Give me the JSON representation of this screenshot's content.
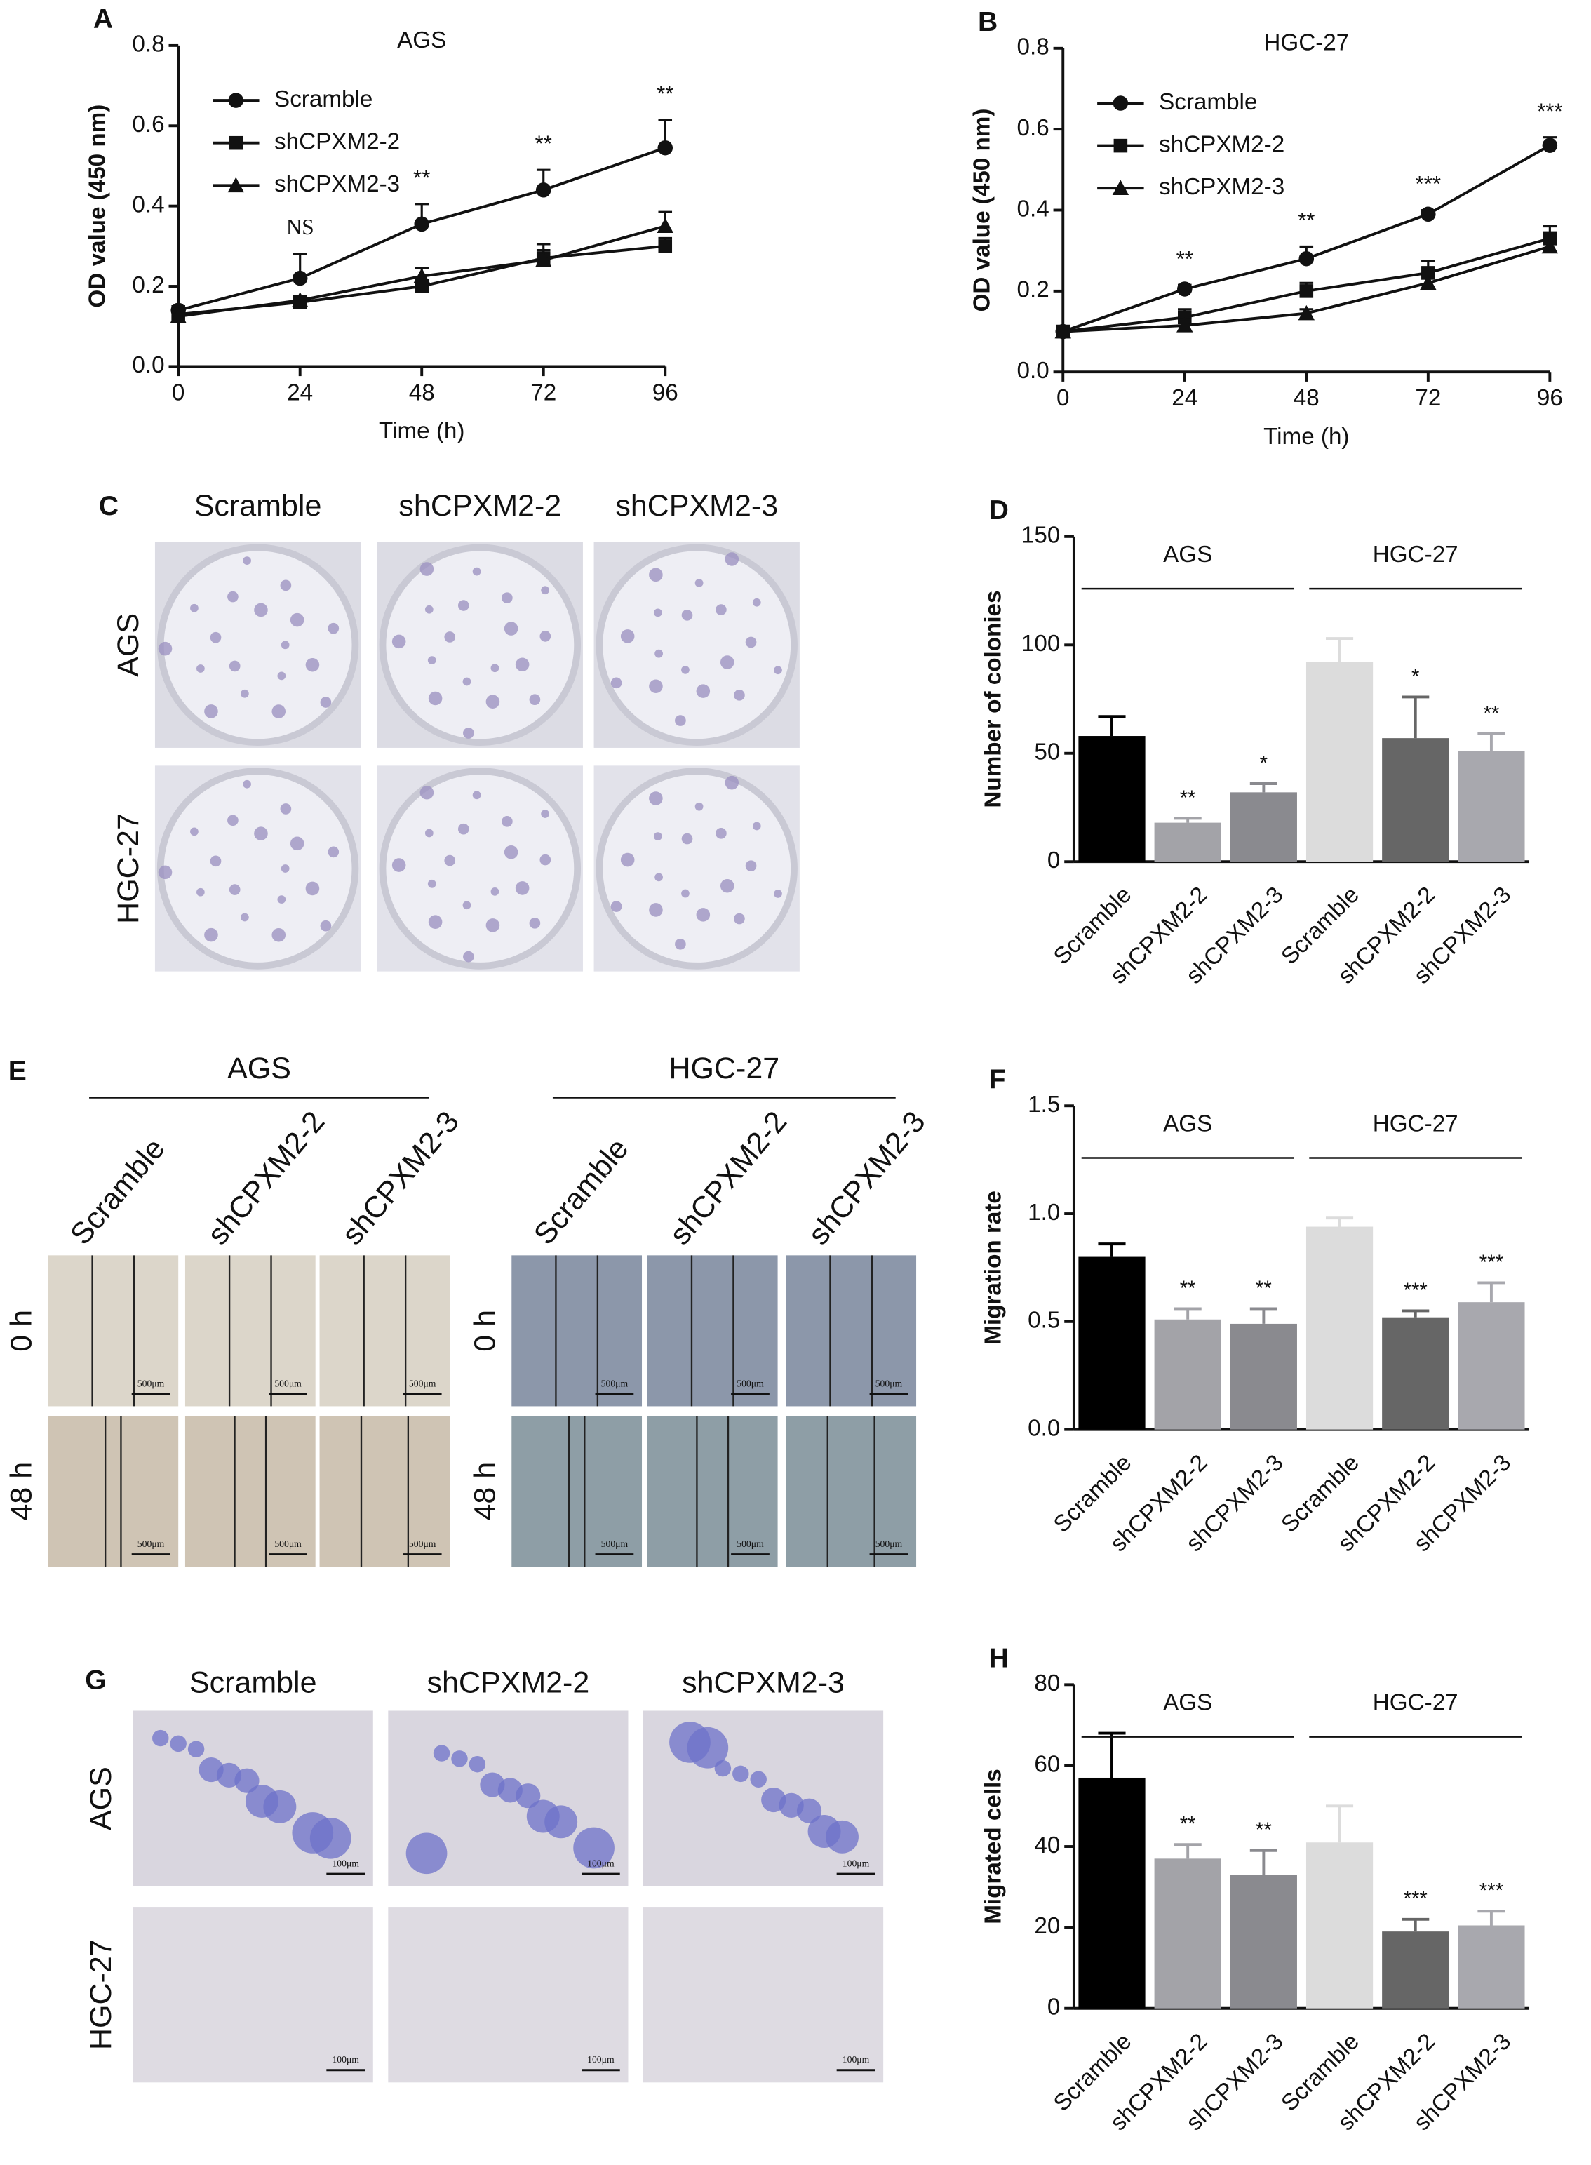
{
  "chart_data": [
    {
      "type": "line",
      "panel": "A",
      "title": "AGS",
      "x_label": "Time (h)",
      "y_label": "OD value (450 nm)",
      "x": [
        0,
        24,
        48,
        72,
        96
      ],
      "xlim": [
        0,
        96
      ],
      "xticks": [
        0,
        24,
        48,
        72,
        96
      ],
      "ylim": [
        0,
        0.8
      ],
      "yticks": [
        {
          "value": 0,
          "label": "0.0"
        },
        {
          "value": 0.2,
          "label": "0.2"
        },
        {
          "value": 0.4,
          "label": "0.4"
        },
        {
          "value": 0.6,
          "label": "0.6"
        },
        {
          "value": 0.8,
          "label": "0.8"
        }
      ],
      "series": [
        {
          "name": "Scramble",
          "color": "#111111",
          "marker": "circle",
          "values": [
            0.14,
            0.22,
            0.355,
            0.44,
            0.545
          ],
          "errors": [
            0.01,
            0.06,
            0.05,
            0.05,
            0.07
          ]
        },
        {
          "name": "shCPXM2-2",
          "color": "#111111",
          "marker": "square",
          "values": [
            0.13,
            0.16,
            0.2,
            0.27,
            0.3
          ],
          "errors": [
            0.01,
            0.01,
            0.015,
            0.02,
            0.02
          ]
        },
        {
          "name": "shCPXM2-3",
          "color": "#111111",
          "marker": "triangle",
          "values": [
            0.125,
            0.165,
            0.225,
            0.265,
            0.35
          ],
          "errors": [
            0.01,
            0.01,
            0.02,
            0.04,
            0.035
          ]
        }
      ],
      "annotations": [
        {
          "x": 24,
          "text": "NS"
        },
        {
          "x": 48,
          "text": "**"
        },
        {
          "x": 72,
          "text": "**"
        },
        {
          "x": 96,
          "text": "**"
        }
      ]
    },
    {
      "type": "line",
      "panel": "B",
      "title": "HGC-27",
      "x_label": "Time (h)",
      "y_label": "OD value (450 nm)",
      "x": [
        0,
        24,
        48,
        72,
        96
      ],
      "xlim": [
        0,
        96
      ],
      "xticks": [
        0,
        24,
        48,
        72,
        96
      ],
      "ylim": [
        0,
        0.8
      ],
      "yticks": [
        {
          "value": 0,
          "label": "0.0"
        },
        {
          "value": 0.2,
          "label": "0.2"
        },
        {
          "value": 0.4,
          "label": "0.4"
        },
        {
          "value": 0.6,
          "label": "0.6"
        },
        {
          "value": 0.8,
          "label": "0.8"
        }
      ],
      "series": [
        {
          "name": "Scramble",
          "color": "#111111",
          "marker": "circle",
          "values": [
            0.1,
            0.205,
            0.28,
            0.39,
            0.56
          ],
          "errors": [
            0.005,
            0.01,
            0.03,
            0.01,
            0.02
          ]
        },
        {
          "name": "shCPXM2-2",
          "color": "#111111",
          "marker": "square",
          "values": [
            0.1,
            0.135,
            0.2,
            0.245,
            0.33
          ],
          "errors": [
            0,
            0.02,
            0.02,
            0.03,
            0.03
          ]
        },
        {
          "name": "shCPXM2-3",
          "color": "#111111",
          "marker": "triangle",
          "values": [
            0.1,
            0.115,
            0.145,
            0.22,
            0.31
          ],
          "errors": [
            0,
            0.02,
            0.01,
            0.02,
            0.035
          ]
        }
      ],
      "annotations": [
        {
          "x": 24,
          "text": "**"
        },
        {
          "x": 48,
          "text": "**"
        },
        {
          "x": 72,
          "text": "***"
        },
        {
          "x": 96,
          "text": "***"
        }
      ]
    },
    {
      "type": "bar",
      "panel": "D",
      "y_label": "Number of colonies",
      "group_labels": [
        "AGS",
        "HGC-27"
      ],
      "categories": [
        "Scramble",
        "shCPXM2-2",
        "shCPXM2-3",
        "Scramble",
        "shCPXM2-2",
        "shCPXM2-3"
      ],
      "values": [
        58,
        18,
        32,
        92,
        57,
        51
      ],
      "errors": [
        9,
        2,
        4,
        11,
        19,
        8
      ],
      "colors": [
        "#000000",
        "#a3a3a8",
        "#8a8a8f",
        "#dcdcdc",
        "#666666",
        "#a8a8ae"
      ],
      "annotations": [
        null,
        "**",
        "*",
        null,
        "*",
        "**"
      ],
      "ylim": [
        0,
        150
      ],
      "yticks": [
        0,
        50,
        100,
        150
      ]
    },
    {
      "type": "bar",
      "panel": "F",
      "y_label": "Migration rate",
      "group_labels": [
        "AGS",
        "HGC-27"
      ],
      "categories": [
        "Scramble",
        "shCPXM2-2",
        "shCPXM2-3",
        "Scramble",
        "shCPXM2-2",
        "shCPXM2-3"
      ],
      "values": [
        0.8,
        0.51,
        0.49,
        0.94,
        0.52,
        0.59
      ],
      "errors": [
        0.06,
        0.05,
        0.07,
        0.04,
        0.03,
        0.09
      ],
      "colors": [
        "#000000",
        "#a3a3a8",
        "#8a8a8f",
        "#dcdcdc",
        "#666666",
        "#a8a8ae"
      ],
      "annotations": [
        null,
        "**",
        "**",
        null,
        "***",
        "***"
      ],
      "ylim": [
        0,
        1.5
      ],
      "yticks": [
        {
          "value": 0,
          "label": "0.0"
        },
        {
          "value": 0.5,
          "label": "0.5"
        },
        {
          "value": 1,
          "label": "1.0"
        },
        {
          "value": 1.5,
          "label": "1.5"
        }
      ]
    },
    {
      "type": "bar",
      "panel": "H",
      "y_label": "Migrated cells",
      "group_labels": [
        "AGS",
        "HGC-27"
      ],
      "categories": [
        "Scramble",
        "shCPXM2-2",
        "shCPXM2-3",
        "Scramble",
        "shCPXM2-2",
        "shCPXM2-3"
      ],
      "values": [
        57,
        37,
        33,
        41,
        19,
        20.5
      ],
      "errors": [
        11,
        3.5,
        6,
        9,
        3,
        3.5
      ],
      "colors": [
        "#000000",
        "#a3a3a8",
        "#8a8a8f",
        "#dcdcdc",
        "#666666",
        "#a8a8ae"
      ],
      "annotations": [
        null,
        "**",
        "**",
        null,
        "***",
        "***"
      ],
      "ylim": [
        0,
        80
      ],
      "yticks": [
        0,
        20,
        40,
        60,
        80
      ]
    }
  ],
  "image_panels": {
    "C": {
      "panel": "C",
      "columns": [
        "Scramble",
        "shCPXM2-2",
        "shCPXM2-3"
      ],
      "rows": [
        "AGS",
        "HGC-27"
      ]
    },
    "E": {
      "panel": "E",
      "groups": [
        {
          "label": "AGS",
          "columns": [
            "Scramble",
            "shCPXM2-2",
            "shCPXM2-3"
          ],
          "rows": [
            "0 h",
            "48 h"
          ],
          "scale_bar": "500μm"
        },
        {
          "label": "HGC-27",
          "columns": [
            "Scramble",
            "shCPXM2-2",
            "shCPXM2-3"
          ],
          "rows": [
            "0 h",
            "48 h"
          ],
          "scale_bar": "500μm"
        }
      ]
    },
    "G": {
      "panel": "G",
      "columns": [
        "Scramble",
        "shCPXM2-2",
        "shCPXM2-3"
      ],
      "rows": [
        "AGS",
        "HGC-27"
      ],
      "scale_bar": "100μm"
    }
  }
}
